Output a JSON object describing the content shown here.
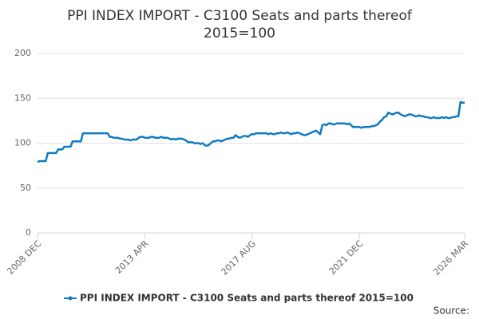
{
  "chart_data": {
    "type": "line",
    "title": "PPI INDEX IMPORT - C3100 Seats and parts thereof",
    "subtitle": "2015=100",
    "source": "Source:",
    "categories": [
      "2008 DEC",
      null,
      null,
      null,
      null,
      null,
      null,
      null,
      null,
      null,
      null,
      null,
      null,
      null,
      null,
      null,
      null,
      null,
      null,
      null,
      null,
      null,
      null,
      null,
      null,
      null,
      null,
      null,
      null,
      null,
      null,
      null,
      null,
      null,
      null,
      null,
      null,
      null,
      null,
      null,
      null,
      null,
      null,
      null,
      null,
      null,
      null,
      null,
      null,
      null,
      null,
      null,
      "2013 APR",
      null,
      null,
      null,
      null,
      null,
      null,
      null,
      null,
      null,
      null,
      null,
      null,
      null,
      null,
      null,
      null,
      null,
      null,
      null,
      null,
      null,
      null,
      null,
      null,
      null,
      null,
      null,
      null,
      null,
      null,
      null,
      null,
      null,
      null,
      null,
      null,
      null,
      null,
      null,
      null,
      null,
      null,
      null,
      null,
      null,
      null,
      null,
      null,
      null,
      null,
      null,
      "2017 AUG",
      null,
      null,
      null,
      null,
      null,
      null,
      null,
      null,
      null,
      null,
      null,
      null,
      null,
      null,
      null,
      null,
      null,
      null,
      null,
      null,
      null,
      null,
      null,
      null,
      null,
      null,
      null,
      null,
      null,
      null,
      null,
      null,
      null,
      null,
      null,
      null,
      null,
      null,
      null,
      null,
      null,
      null,
      null,
      null,
      null,
      null,
      null,
      null,
      null,
      null,
      null,
      "2021 DEC",
      null,
      null,
      null,
      null,
      null,
      null,
      null,
      null,
      null,
      null,
      null,
      null,
      null,
      null,
      null,
      null,
      null,
      null,
      null,
      null,
      null,
      null,
      null,
      null,
      null,
      null,
      null,
      null,
      null,
      null,
      null,
      null,
      null,
      null,
      null,
      null,
      null,
      null,
      null,
      null,
      null,
      null,
      null,
      null,
      null,
      null,
      null,
      null,
      null,
      null,
      "2026 MAR"
    ],
    "series": [
      {
        "name": "PPI INDEX IMPORT - C3100 Seats and parts thereof 2015=100",
        "color": "#0f7bc0",
        "values": [
          79,
          80,
          80,
          80,
          80,
          89,
          89,
          89,
          89,
          89,
          93,
          93,
          93,
          96,
          96,
          96,
          96,
          102,
          102,
          102,
          102,
          102,
          111,
          111,
          111,
          111,
          111,
          111,
          111,
          111,
          111,
          111,
          111,
          111,
          111,
          107,
          107,
          106,
          106,
          106,
          105,
          105,
          104,
          104,
          104,
          103,
          104,
          104,
          104,
          106,
          107,
          107,
          106,
          106,
          106,
          107,
          107,
          106,
          106,
          106,
          107,
          106,
          106,
          106,
          105,
          104,
          105,
          104,
          105,
          105,
          105,
          104,
          103,
          101,
          101,
          101,
          100,
          100,
          100,
          99,
          100,
          98,
          97,
          98,
          100,
          102,
          102,
          103,
          103,
          102,
          103,
          104,
          105,
          105,
          106,
          106,
          109,
          107,
          106,
          107,
          108,
          108,
          107,
          109,
          110,
          110,
          111,
          111,
          111,
          111,
          111,
          111,
          110,
          111,
          110,
          110,
          111,
          111,
          112,
          111,
          111,
          112,
          111,
          110,
          111,
          111,
          112,
          111,
          110,
          109,
          109,
          110,
          111,
          112,
          113,
          114,
          112,
          110,
          120,
          121,
          120,
          122,
          122,
          121,
          121,
          122,
          122,
          122,
          122,
          122,
          121,
          122,
          120,
          118,
          118,
          118,
          118,
          117,
          118,
          118,
          118,
          118,
          119,
          119,
          120,
          121,
          124,
          126,
          129,
          130,
          134,
          133,
          132,
          133,
          134,
          134,
          132,
          131,
          130,
          131,
          132,
          132,
          131,
          130,
          130,
          131,
          130,
          130,
          129,
          129,
          128,
          128,
          129,
          128,
          128,
          128,
          129,
          128,
          129,
          128,
          128,
          129,
          129,
          130,
          130,
          146,
          145,
          145
        ]
      }
    ],
    "ylim": [
      0,
      200
    ],
    "yticks": [
      0,
      50,
      100,
      150,
      200
    ],
    "grid": true,
    "legend": "bottom"
  }
}
